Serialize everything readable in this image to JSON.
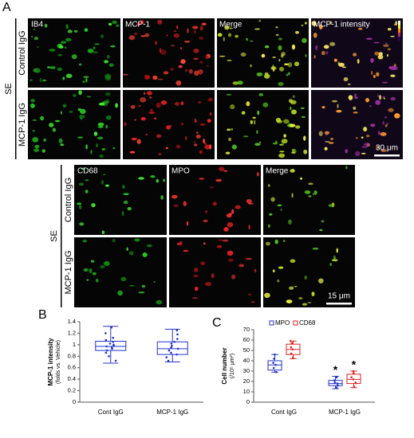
{
  "figure": {
    "panel_a": {
      "label": "A",
      "group": "SE",
      "rows": [
        "Control IgG",
        "MCP-1 IgG"
      ],
      "columns": [
        "IB4",
        "MCP-1",
        "Merge",
        "MCP-1 intensity"
      ],
      "scale_bar": "30 μm"
    },
    "panel_a2": {
      "group": "SE",
      "rows": [
        "Control IgG",
        "MCP-1 IgG"
      ],
      "columns": [
        "CD68",
        "MPO",
        "Merge"
      ],
      "scale_bar": "15 μm"
    }
  },
  "chart_data": [
    {
      "type": "box",
      "panel": "B",
      "ylabel": "MCP-1 intensity",
      "ylabel_sub": "(folds vs. Vehicle)",
      "categories": [
        "Cont IgG",
        "MCP-1 IgG"
      ],
      "ylim": [
        0,
        1.4
      ],
      "yticks": [
        0,
        0.2,
        0.4,
        0.6,
        0.8,
        1,
        1.2,
        1.4
      ],
      "series": [
        {
          "color": "#2233cc",
          "boxes": [
            {
              "min": 0.68,
              "q1": 0.9,
              "median": 0.97,
              "q3": 1.06,
              "max": 1.32
            },
            {
              "min": 0.7,
              "q1": 0.83,
              "median": 0.93,
              "q3": 1.05,
              "max": 1.27
            }
          ],
          "points": [
            [
              0.72,
              0.8,
              0.86,
              0.9,
              0.93,
              0.95,
              0.97,
              0.98,
              1.0,
              1.02,
              1.05,
              1.08,
              1.12,
              1.2,
              1.3
            ],
            [
              0.72,
              0.78,
              0.83,
              0.86,
              0.9,
              0.93,
              0.95,
              0.98,
              1.02,
              1.05,
              1.1,
              1.18,
              1.25
            ]
          ]
        }
      ]
    },
    {
      "type": "box",
      "panel": "C",
      "ylabel": "Cell number",
      "ylabel_sub": "(/10⁵ μm²)",
      "categories": [
        "Cont IgG",
        "MCP-1 IgG"
      ],
      "ylim": [
        0,
        70
      ],
      "yticks": [
        0,
        10,
        20,
        30,
        40,
        50,
        60,
        70
      ],
      "annotations": [
        "*",
        "*"
      ],
      "series": [
        {
          "name": "MPO",
          "color": "#2233cc",
          "boxes": [
            {
              "min": 29,
              "q1": 31,
              "median": 36,
              "q3": 40,
              "max": 46
            },
            {
              "min": 13,
              "q1": 16,
              "median": 18,
              "q3": 21,
              "max": 25
            }
          ],
          "points": [
            [
              29,
              33,
              36,
              38,
              42,
              46
            ],
            [
              14,
              16,
              18,
              19,
              21,
              24
            ]
          ]
        },
        {
          "name": "CD68",
          "color": "#dd2222",
          "boxes": [
            {
              "min": 42,
              "q1": 46,
              "median": 51,
              "q3": 56,
              "max": 59
            },
            {
              "min": 14,
              "q1": 18,
              "median": 22,
              "q3": 27,
              "max": 30
            }
          ],
          "points": [
            [
              43,
              47,
              51,
              53,
              57,
              59
            ],
            [
              15,
              19,
              22,
              24,
              28,
              30
            ]
          ]
        }
      ]
    }
  ]
}
